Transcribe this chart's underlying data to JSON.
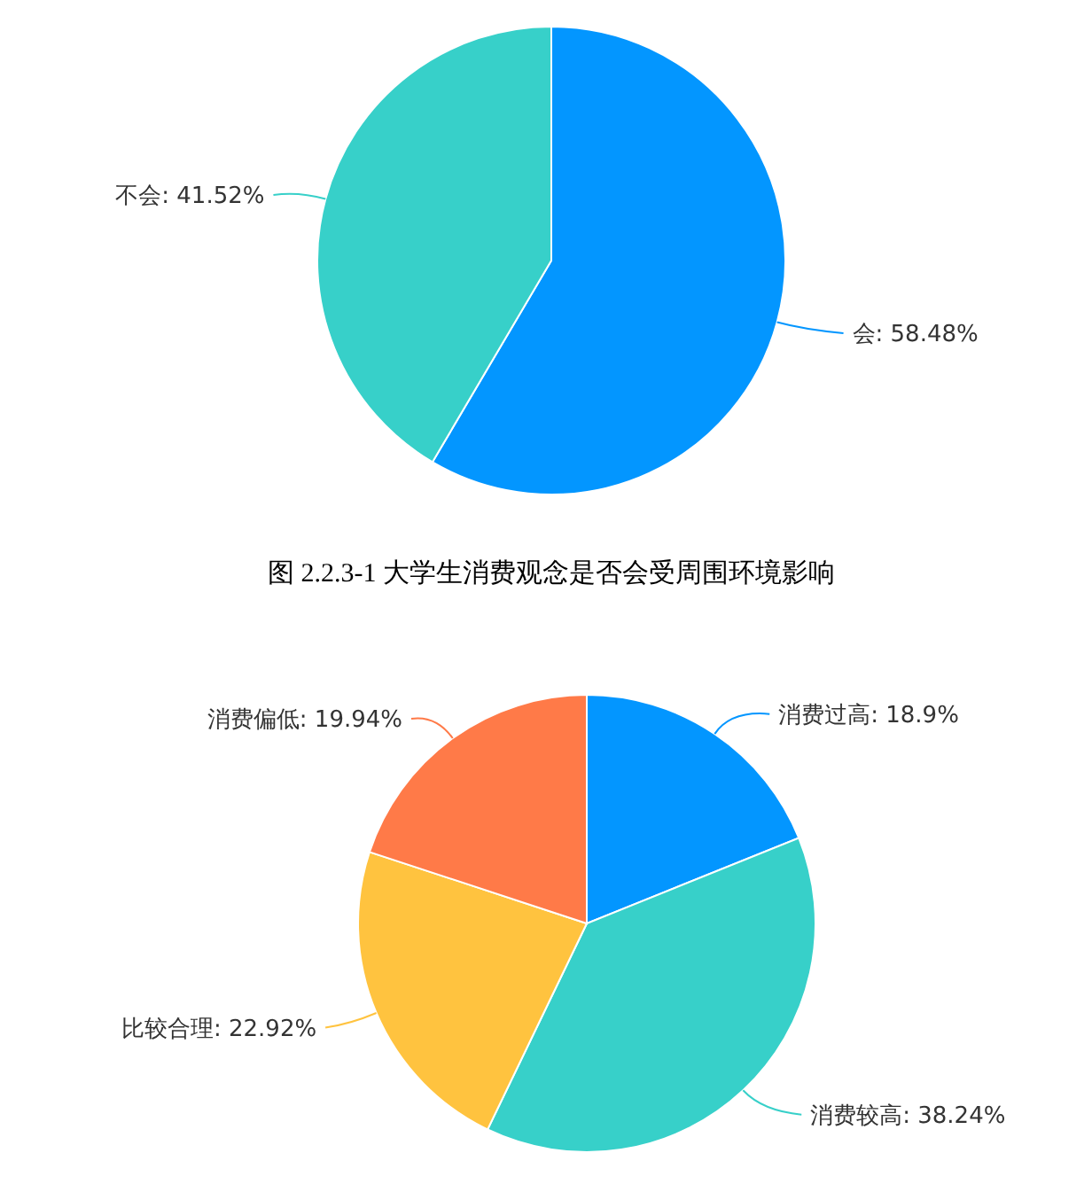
{
  "chart_data": [
    {
      "type": "pie",
      "title": "图 2.2.3-1 大学生消费观念是否会受周围环境影响",
      "categories": [
        "会",
        "不会"
      ],
      "values": [
        58.48,
        41.52
      ],
      "colors": [
        "#0396ff",
        "#37d0c9"
      ],
      "value_labels": [
        "58.48%",
        "41.52%"
      ]
    },
    {
      "type": "pie",
      "categories": [
        "消费过高",
        "消费较高",
        "比较合理",
        "消费偏低"
      ],
      "values": [
        18.9,
        38.24,
        22.92,
        19.94
      ],
      "colors": [
        "#0396ff",
        "#37d0c9",
        "#ffc33f",
        "#ff7a48"
      ],
      "value_labels": [
        "18.9%",
        "38.24%",
        "22.92%",
        "19.94%"
      ]
    }
  ]
}
